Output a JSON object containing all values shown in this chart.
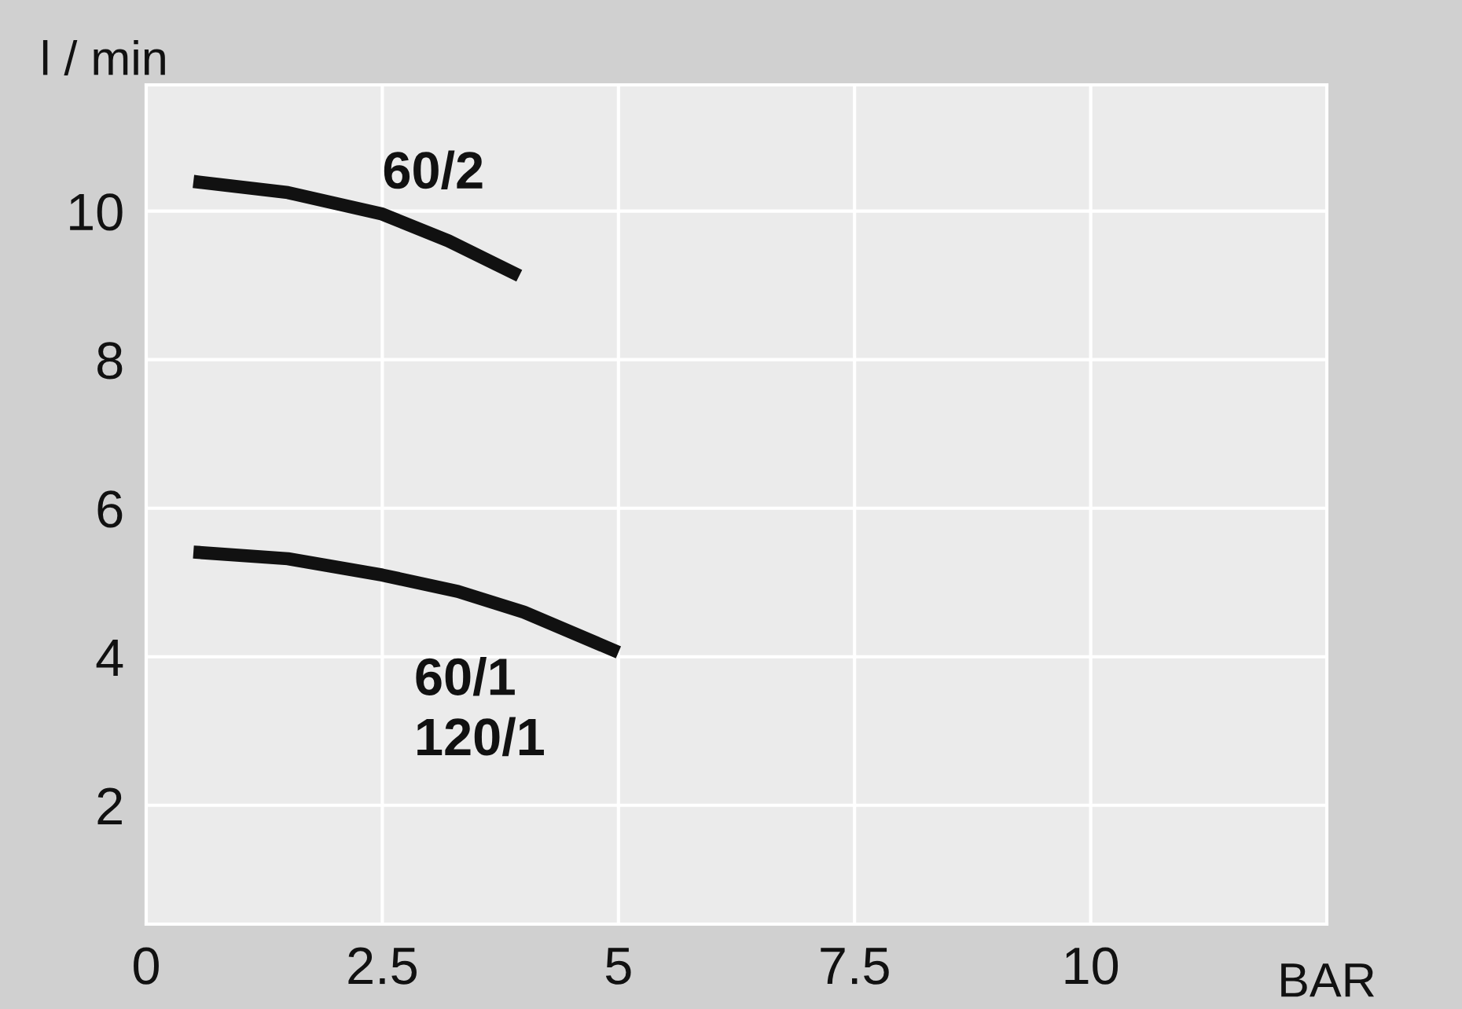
{
  "chart_data": {
    "type": "line",
    "xlabel": "BAR",
    "ylabel": "l / min",
    "xlim": [
      0,
      12.5
    ],
    "ylim": [
      0.4,
      11.7
    ],
    "xticks": [
      0,
      2.5,
      5,
      7.5,
      10
    ],
    "yticks": [
      2,
      4,
      6,
      8,
      10
    ],
    "grid": true,
    "marker": "none",
    "line_style": "solid",
    "series": [
      {
        "name": "60/2",
        "color": "#111111",
        "x": [
          0.5,
          1.5,
          2.5,
          3.2,
          3.95
        ],
        "values": [
          10.4,
          10.25,
          9.96,
          9.6,
          9.13
        ]
      },
      {
        "name": "60/1\n120/1",
        "color": "#111111",
        "x": [
          0.5,
          1.5,
          2.5,
          3.3,
          4,
          5
        ],
        "values": [
          5.41,
          5.32,
          5.1,
          4.88,
          4.6,
          4.06
        ]
      }
    ]
  }
}
